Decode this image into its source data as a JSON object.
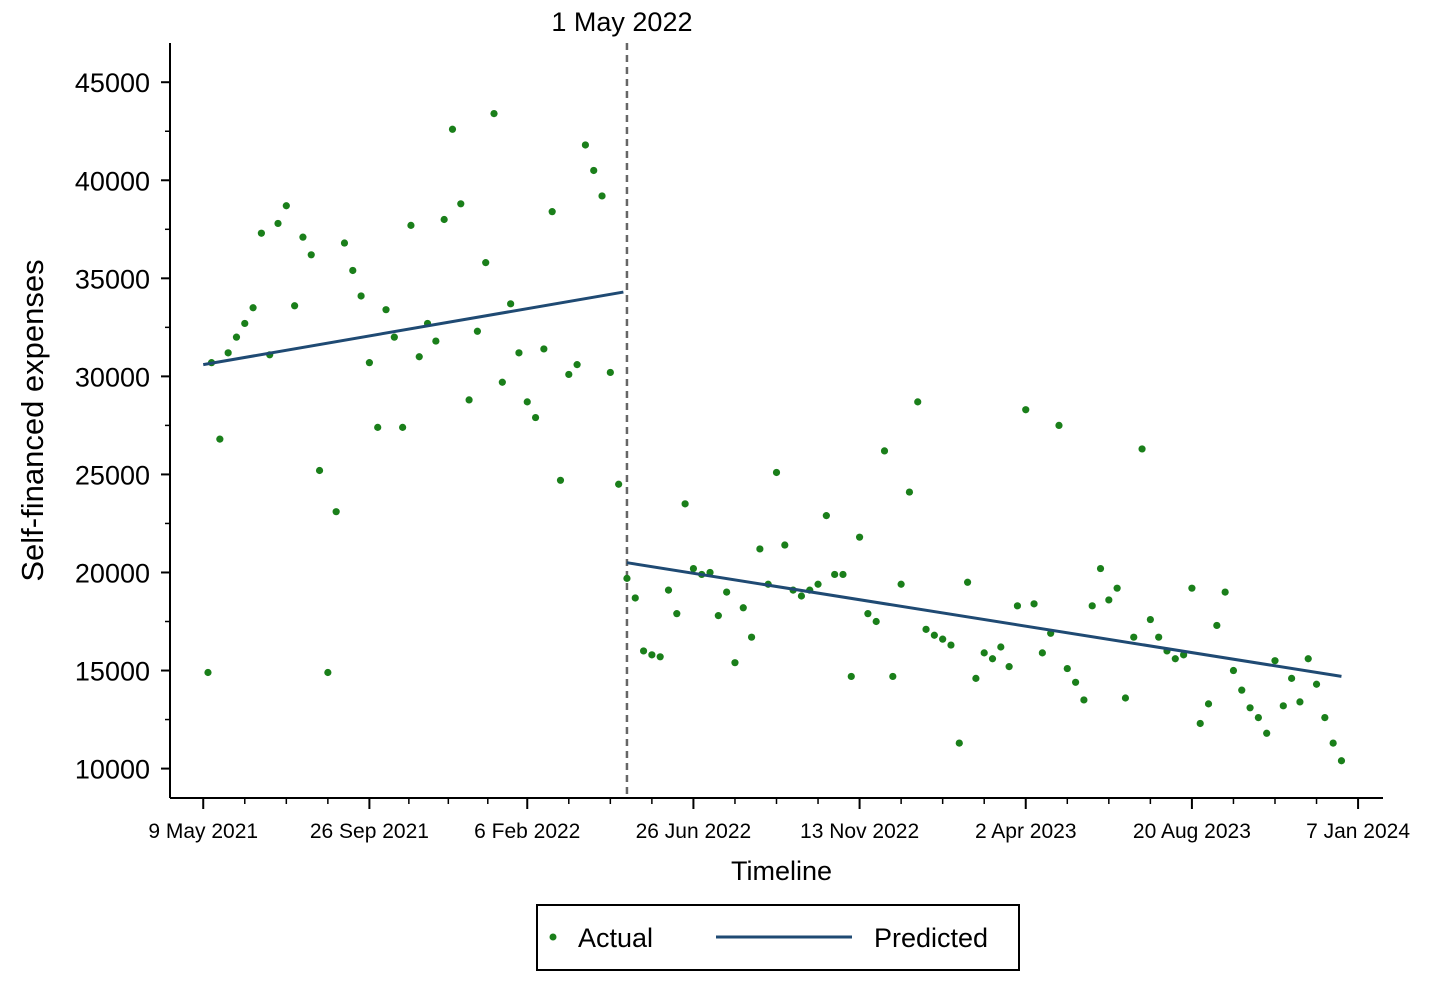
{
  "chart_data": {
    "type": "scatter",
    "ylabel": "Self-financed expenses",
    "xlabel": "Timeline",
    "intervention": {
      "date": "2022-05-01",
      "label": "1 May 2022"
    },
    "ylim": [
      8500,
      47000
    ],
    "y_ticks": [
      10000,
      15000,
      20000,
      25000,
      30000,
      35000,
      40000,
      45000
    ],
    "x_ticks": [
      {
        "date": "2021-05-09",
        "label": "9 May 2021"
      },
      {
        "date": "2021-09-26",
        "label": "26 Sep 2021"
      },
      {
        "date": "2022-02-06",
        "label": "6 Feb 2022"
      },
      {
        "date": "2022-06-26",
        "label": "26 Jun 2022"
      },
      {
        "date": "2022-11-13",
        "label": "13 Nov 2022"
      },
      {
        "date": "2023-04-02",
        "label": "2 Apr 2023"
      },
      {
        "date": "2023-08-20",
        "label": "20 Aug 2023"
      },
      {
        "date": "2024-01-07",
        "label": "7 Jan 2024"
      }
    ],
    "x_range": [
      "2021-04-11",
      "2024-01-28"
    ],
    "colors": {
      "actual": "#1a7f1a",
      "predicted": "#1f4a73",
      "vline": "#666666"
    },
    "legend": {
      "position": "bottom",
      "actual_label": "Actual",
      "predicted_label": "Predicted"
    },
    "series": [
      {
        "name": "Actual",
        "kind": "points",
        "points": [
          [
            "2021-05-13",
            14900
          ],
          [
            "2021-05-16",
            30700
          ],
          [
            "2021-05-23",
            26800
          ],
          [
            "2021-05-30",
            31200
          ],
          [
            "2021-06-06",
            32000
          ],
          [
            "2021-06-13",
            32700
          ],
          [
            "2021-06-20",
            33500
          ],
          [
            "2021-06-27",
            37300
          ],
          [
            "2021-07-04",
            31100
          ],
          [
            "2021-07-11",
            37800
          ],
          [
            "2021-07-18",
            38700
          ],
          [
            "2021-07-25",
            33600
          ],
          [
            "2021-08-01",
            37100
          ],
          [
            "2021-08-08",
            36200
          ],
          [
            "2021-08-15",
            25200
          ],
          [
            "2021-08-22",
            14900
          ],
          [
            "2021-08-29",
            23100
          ],
          [
            "2021-09-05",
            36800
          ],
          [
            "2021-09-12",
            35400
          ],
          [
            "2021-09-19",
            34100
          ],
          [
            "2021-09-26",
            30700
          ],
          [
            "2021-10-03",
            27400
          ],
          [
            "2021-10-10",
            33400
          ],
          [
            "2021-10-17",
            32000
          ],
          [
            "2021-10-24",
            27400
          ],
          [
            "2021-10-31",
            37700
          ],
          [
            "2021-11-07",
            31000
          ],
          [
            "2021-11-14",
            32700
          ],
          [
            "2021-11-21",
            31800
          ],
          [
            "2021-11-28",
            38000
          ],
          [
            "2021-12-05",
            42600
          ],
          [
            "2021-12-12",
            38800
          ],
          [
            "2021-12-19",
            28800
          ],
          [
            "2021-12-26",
            32300
          ],
          [
            "2022-01-02",
            35800
          ],
          [
            "2022-01-09",
            43400
          ],
          [
            "2022-01-16",
            29700
          ],
          [
            "2022-01-23",
            33700
          ],
          [
            "2022-01-30",
            31200
          ],
          [
            "2022-02-06",
            28700
          ],
          [
            "2022-02-13",
            27900
          ],
          [
            "2022-02-20",
            31400
          ],
          [
            "2022-02-27",
            38400
          ],
          [
            "2022-03-06",
            24700
          ],
          [
            "2022-03-13",
            30100
          ],
          [
            "2022-03-20",
            30600
          ],
          [
            "2022-03-27",
            41800
          ],
          [
            "2022-04-03",
            40500
          ],
          [
            "2022-04-10",
            39200
          ],
          [
            "2022-04-17",
            30200
          ],
          [
            "2022-04-24",
            24500
          ],
          [
            "2022-05-01",
            19700
          ],
          [
            "2022-05-08",
            18700
          ],
          [
            "2022-05-15",
            16000
          ],
          [
            "2022-05-22",
            15800
          ],
          [
            "2022-05-29",
            15700
          ],
          [
            "2022-06-05",
            19100
          ],
          [
            "2022-06-12",
            17900
          ],
          [
            "2022-06-19",
            23500
          ],
          [
            "2022-06-26",
            20200
          ],
          [
            "2022-07-03",
            19900
          ],
          [
            "2022-07-10",
            20000
          ],
          [
            "2022-07-17",
            17800
          ],
          [
            "2022-07-24",
            19000
          ],
          [
            "2022-07-31",
            15400
          ],
          [
            "2022-08-07",
            18200
          ],
          [
            "2022-08-14",
            16700
          ],
          [
            "2022-08-21",
            21200
          ],
          [
            "2022-08-28",
            19400
          ],
          [
            "2022-09-04",
            25100
          ],
          [
            "2022-09-11",
            21400
          ],
          [
            "2022-09-18",
            19100
          ],
          [
            "2022-09-25",
            18800
          ],
          [
            "2022-10-02",
            19100
          ],
          [
            "2022-10-09",
            19400
          ],
          [
            "2022-10-16",
            22900
          ],
          [
            "2022-10-23",
            19900
          ],
          [
            "2022-10-30",
            19900
          ],
          [
            "2022-11-06",
            14700
          ],
          [
            "2022-11-13",
            21800
          ],
          [
            "2022-11-20",
            17900
          ],
          [
            "2022-11-27",
            17500
          ],
          [
            "2022-12-04",
            26200
          ],
          [
            "2022-12-11",
            14700
          ],
          [
            "2022-12-18",
            19400
          ],
          [
            "2022-12-25",
            24100
          ],
          [
            "2023-01-01",
            28700
          ],
          [
            "2023-01-08",
            17100
          ],
          [
            "2023-01-15",
            16800
          ],
          [
            "2023-01-22",
            16600
          ],
          [
            "2023-01-29",
            16300
          ],
          [
            "2023-02-05",
            11300
          ],
          [
            "2023-02-12",
            19500
          ],
          [
            "2023-02-19",
            14600
          ],
          [
            "2023-02-26",
            15900
          ],
          [
            "2023-03-05",
            15600
          ],
          [
            "2023-03-12",
            16200
          ],
          [
            "2023-03-19",
            15200
          ],
          [
            "2023-03-26",
            18300
          ],
          [
            "2023-04-02",
            28300
          ],
          [
            "2023-04-09",
            18400
          ],
          [
            "2023-04-16",
            15900
          ],
          [
            "2023-04-23",
            16900
          ],
          [
            "2023-04-30",
            27500
          ],
          [
            "2023-05-07",
            15100
          ],
          [
            "2023-05-14",
            14400
          ],
          [
            "2023-05-21",
            13500
          ],
          [
            "2023-05-28",
            18300
          ],
          [
            "2023-06-04",
            20200
          ],
          [
            "2023-06-11",
            18600
          ],
          [
            "2023-06-18",
            19200
          ],
          [
            "2023-06-25",
            13600
          ],
          [
            "2023-07-02",
            16700
          ],
          [
            "2023-07-09",
            26300
          ],
          [
            "2023-07-16",
            17600
          ],
          [
            "2023-07-23",
            16700
          ],
          [
            "2023-07-30",
            16000
          ],
          [
            "2023-08-06",
            15600
          ],
          [
            "2023-08-13",
            15800
          ],
          [
            "2023-08-20",
            19200
          ],
          [
            "2023-08-27",
            12300
          ],
          [
            "2023-09-03",
            13300
          ],
          [
            "2023-09-10",
            17300
          ],
          [
            "2023-09-17",
            19000
          ],
          [
            "2023-09-24",
            15000
          ],
          [
            "2023-10-01",
            14000
          ],
          [
            "2023-10-08",
            13100
          ],
          [
            "2023-10-15",
            12600
          ],
          [
            "2023-10-22",
            11800
          ],
          [
            "2023-10-29",
            15500
          ],
          [
            "2023-11-05",
            13200
          ],
          [
            "2023-11-12",
            14600
          ],
          [
            "2023-11-19",
            13400
          ],
          [
            "2023-11-26",
            15600
          ],
          [
            "2023-12-03",
            14300
          ],
          [
            "2023-12-10",
            12600
          ],
          [
            "2023-12-17",
            11300
          ],
          [
            "2023-12-24",
            10400
          ]
        ]
      },
      {
        "name": "Predicted",
        "kind": "line",
        "segments": [
          [
            [
              "2021-05-09",
              30600
            ],
            [
              "2022-04-28",
              34300
            ]
          ],
          [
            [
              "2022-05-01",
              20500
            ],
            [
              "2023-12-24",
              14700
            ]
          ]
        ]
      }
    ]
  }
}
